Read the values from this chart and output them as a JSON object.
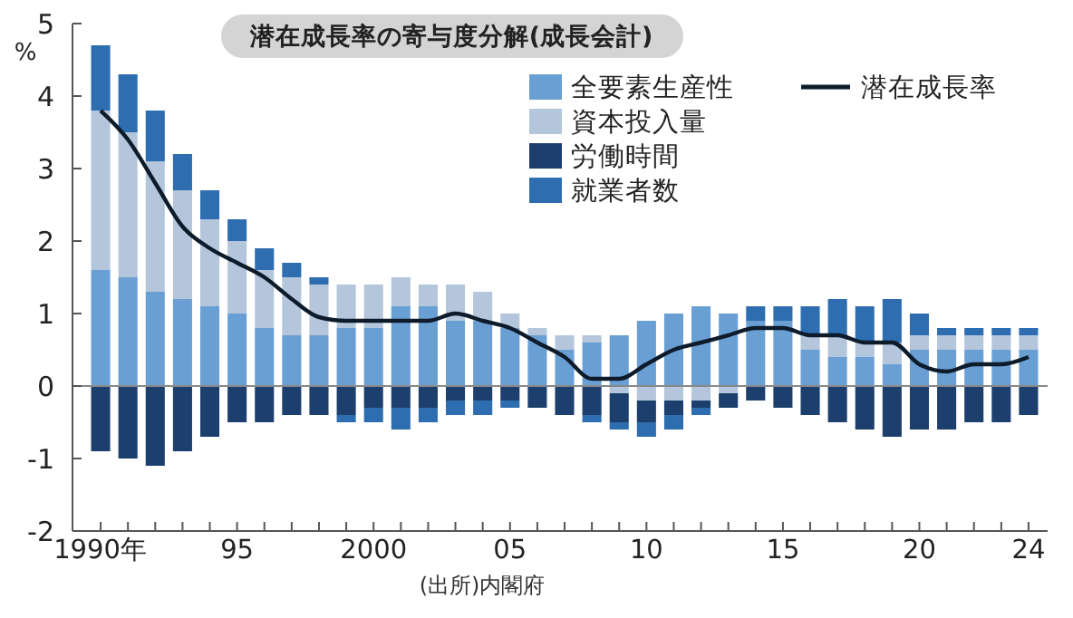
{
  "chart_data": {
    "type": "bar",
    "title": "潜在成長率の寄与度分解(成長会計)",
    "ylabel": "%",
    "annotations": [
      "(出所)内閣府"
    ],
    "categories": [
      "1990年",
      null,
      null,
      null,
      null,
      "95",
      null,
      null,
      null,
      null,
      "2000",
      null,
      null,
      null,
      null,
      "05",
      null,
      null,
      null,
      null,
      "10",
      null,
      null,
      null,
      null,
      "15",
      null,
      null,
      null,
      null,
      "20",
      null,
      null,
      null,
      "24"
    ],
    "stacked": true,
    "ylim": [
      -2,
      5
    ],
    "yticks": [
      -2,
      -1,
      0,
      1,
      2,
      3,
      4,
      5
    ],
    "grid": false,
    "legend": "top right",
    "marker": "none",
    "line_style": "solid",
    "ref_lines": [
      {
        "axis": "y",
        "value": 0,
        "color": "#888888"
      }
    ],
    "series": [
      {
        "name": "全要素生産性",
        "color": "#6a9fd4",
        "values": [
          1.6,
          1.5,
          1.3,
          1.2,
          1.1,
          1.0,
          0.8,
          0.7,
          0.7,
          0.8,
          0.8,
          1.1,
          1.1,
          0.9,
          0.9,
          0.8,
          0.7,
          0.5,
          0.6,
          0.7,
          0.9,
          1.0,
          1.1,
          1.0,
          0.9,
          0.9,
          0.5,
          0.4,
          0.4,
          0.3,
          0.5,
          0.5,
          0.5,
          0.5,
          0.5
        ]
      },
      {
        "name": "資本投入量",
        "color": "#b4c6dc",
        "values": [
          2.2,
          2.0,
          1.8,
          1.5,
          1.2,
          1.0,
          0.8,
          0.8,
          0.7,
          0.6,
          0.6,
          0.4,
          0.3,
          0.5,
          0.4,
          0.2,
          0.1,
          0.2,
          0.1,
          -0.1,
          -0.2,
          -0.2,
          -0.2,
          -0.1,
          0,
          0,
          0.2,
          0.3,
          0.2,
          0.3,
          0.2,
          0.2,
          0.2,
          0.2,
          0.2
        ]
      },
      {
        "name": "労働時間",
        "color": "#1d3f6e",
        "values": [
          -0.9,
          -1.0,
          -1.1,
          -0.9,
          -0.7,
          -0.5,
          -0.5,
          -0.4,
          -0.4,
          -0.4,
          -0.3,
          -0.3,
          -0.3,
          -0.2,
          -0.2,
          -0.2,
          -0.3,
          -0.4,
          -0.4,
          -0.4,
          -0.3,
          -0.2,
          -0.1,
          -0.2,
          -0.2,
          -0.3,
          -0.4,
          -0.5,
          -0.6,
          -0.7,
          -0.6,
          -0.6,
          -0.5,
          -0.5,
          -0.4
        ]
      },
      {
        "name": "就業者数",
        "color": "#2e6db0",
        "values": [
          0.9,
          0.8,
          0.7,
          0.5,
          0.4,
          0.3,
          0.3,
          0.2,
          0.1,
          -0.1,
          -0.2,
          -0.3,
          -0.2,
          -0.2,
          -0.2,
          -0.1,
          0,
          0,
          -0.1,
          -0.1,
          -0.2,
          -0.2,
          -0.1,
          0,
          0.2,
          0.2,
          0.4,
          0.5,
          0.5,
          0.6,
          0.3,
          0.1,
          0.1,
          0.1,
          0.1
        ]
      },
      {
        "name": "潜在成長率",
        "type": "line",
        "color": "#0d1b2a",
        "values": [
          3.8,
          3.4,
          2.8,
          2.2,
          1.9,
          1.7,
          1.5,
          1.2,
          0.95,
          0.9,
          0.9,
          0.9,
          0.9,
          1.0,
          0.9,
          0.8,
          0.6,
          0.4,
          0.1,
          0.1,
          0.3,
          0.5,
          0.6,
          0.7,
          0.8,
          0.8,
          0.7,
          0.7,
          0.6,
          0.6,
          0.3,
          0.2,
          0.3,
          0.3,
          0.4
        ]
      }
    ]
  }
}
